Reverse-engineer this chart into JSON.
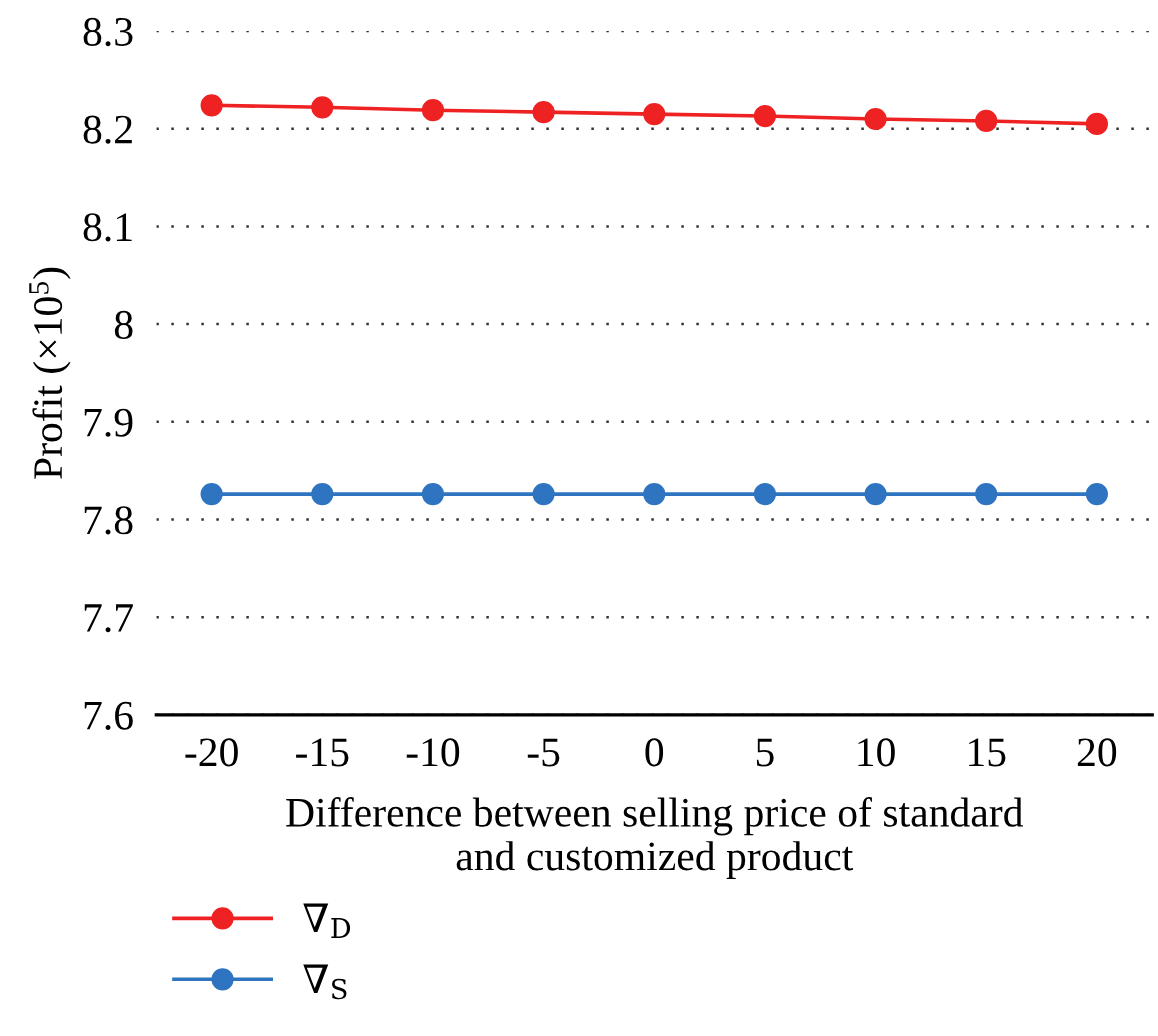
{
  "chart_data": {
    "type": "line",
    "xlabel": "Difference between selling price of standard\nand customized product",
    "ylabel": "Profit (×10$^{5}$)",
    "categories": [
      "-20",
      "-15",
      "-10",
      "-5",
      "0",
      "5",
      "10",
      "15",
      "20"
    ],
    "series": [
      {
        "name": "∇$_{D}$",
        "color": "#ee2222",
        "values": [
          8.224,
          8.222,
          8.219,
          8.217,
          8.215,
          8.213,
          8.21,
          8.208,
          8.205
        ]
      },
      {
        "name": "∇$_{S}$",
        "color": "#2f74c0",
        "values": [
          7.826,
          7.826,
          7.826,
          7.826,
          7.826,
          7.826,
          7.826,
          7.826,
          7.826
        ]
      }
    ],
    "ylim": [
      7.6,
      8.3
    ],
    "yticks": [
      7.6,
      7.7,
      7.8,
      7.9,
      8,
      8.1,
      8.2,
      8.3
    ],
    "grid": "y",
    "legend": "bottom left",
    "marker": "circle",
    "line_style": "solid"
  }
}
